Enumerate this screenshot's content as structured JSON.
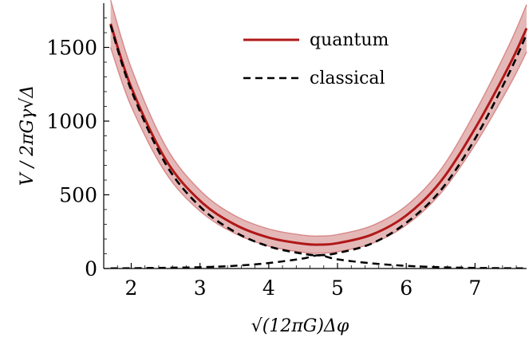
{
  "chart_data": {
    "type": "line",
    "title": "",
    "xlabel": "√(12πG)Δφ",
    "ylabel": "V / 2πGγ√Δ",
    "xlim": [
      1.6,
      7.75
    ],
    "ylim": [
      0,
      1800
    ],
    "x_ticks": [
      2,
      3,
      4,
      5,
      6,
      7
    ],
    "x_tick_labels": [
      "2",
      "3",
      "4",
      "5",
      "6",
      "7"
    ],
    "y_ticks": [
      0,
      500,
      1000,
      1500
    ],
    "y_tick_labels": [
      "0",
      "500",
      "1000",
      "1500"
    ],
    "grid": false,
    "legend_position": "top-center",
    "colors": {
      "quantum": "#b01818",
      "band_fill": "#dca0a0",
      "band_edge": "#d98a8a",
      "classical": "#000000"
    },
    "series": [
      {
        "name": "quantum",
        "style": "solid",
        "x": [
          1.7,
          2.0,
          2.5,
          3.0,
          3.5,
          4.0,
          4.5,
          4.73,
          5.0,
          5.5,
          6.0,
          6.5,
          7.0,
          7.5,
          7.75
        ],
        "y": [
          1660,
          1230,
          740,
          460,
          300,
          210,
          168,
          162,
          172,
          230,
          360,
          590,
          950,
          1380,
          1630
        ],
        "band_half_width": [
          160,
          130,
          90,
          70,
          60,
          58,
          58,
          58,
          58,
          60,
          65,
          80,
          110,
          140,
          160
        ]
      },
      {
        "name": "classical",
        "style": "dashed",
        "x": [
          1.7,
          2.0,
          2.5,
          3.0,
          3.5,
          4.0,
          4.5,
          4.73,
          5.0,
          5.5,
          6.0,
          6.5,
          7.0,
          7.5,
          7.75
        ],
        "y": [
          1650,
          1210,
          710,
          420,
          250,
          150,
          100,
          90,
          105,
          170,
          310,
          530,
          880,
          1330,
          1590
        ]
      },
      {
        "name": "",
        "style": "dashed",
        "x": [
          1.7,
          2.0,
          2.5,
          3.0,
          3.5,
          4.0,
          4.5,
          4.73,
          5.0,
          5.5,
          6.0,
          6.5,
          7.0,
          7.5,
          7.75
        ],
        "y": [
          1,
          2,
          5,
          9,
          18,
          37,
          68,
          90,
          62,
          35,
          18,
          9,
          4,
          2,
          1
        ]
      }
    ]
  }
}
